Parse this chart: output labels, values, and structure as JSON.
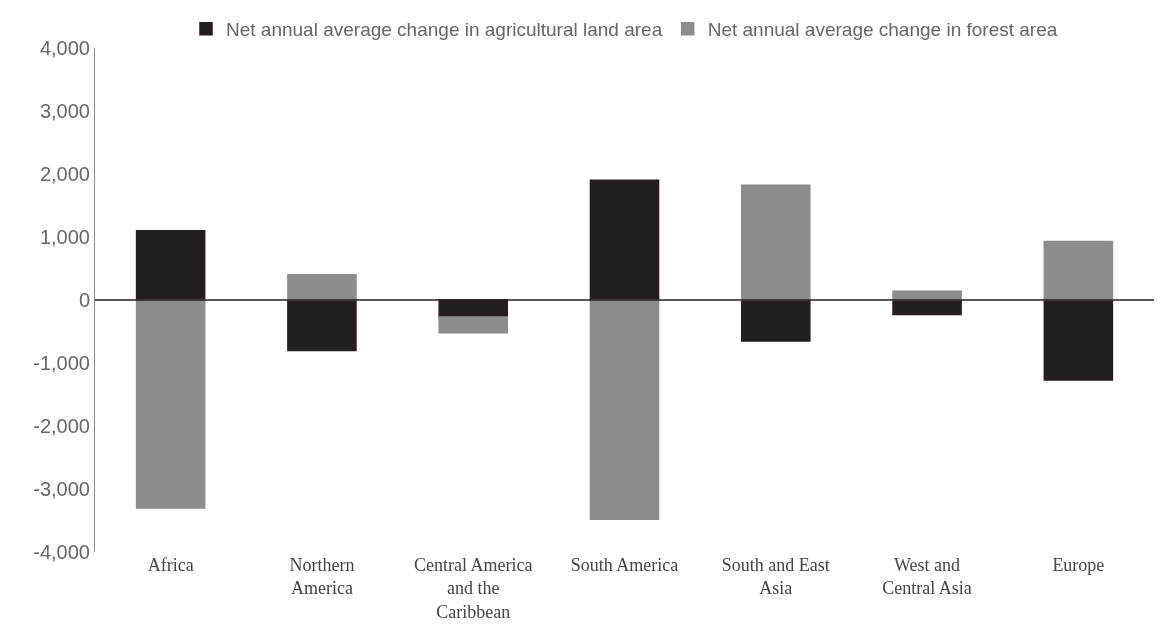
{
  "chart_data": {
    "type": "bar",
    "stacked": true,
    "categories": [
      "Africa",
      "Northern America",
      "Central America and the Caribbean",
      "South America",
      "South and East Asia",
      "West and Central Asia",
      "Europe"
    ],
    "series": [
      {
        "name": "Net annual average change in agricultural land area",
        "color": "#231f20",
        "values": [
          1100,
          -800,
          -270,
          1900,
          -650,
          -230,
          -1270
        ]
      },
      {
        "name": "Net annual average change in forest area",
        "color": "#8c8c8c",
        "values": [
          -3300,
          400,
          -250,
          -3480,
          1820,
          140,
          930
        ]
      }
    ],
    "ylim": [
      -4000,
      4000
    ],
    "yticks": [
      {
        "value": -4000,
        "label": "-4,000"
      },
      {
        "value": -3000,
        "label": "-3,000"
      },
      {
        "value": -2000,
        "label": "-2,000"
      },
      {
        "value": -1000,
        "label": "-1,000"
      },
      0,
      {
        "value": 1000,
        "label": "1,000"
      },
      {
        "value": 2000,
        "label": "2,000"
      },
      {
        "value": 3000,
        "label": "3,000"
      },
      {
        "value": 4000,
        "label": "4,000"
      }
    ],
    "legend": "top"
  }
}
